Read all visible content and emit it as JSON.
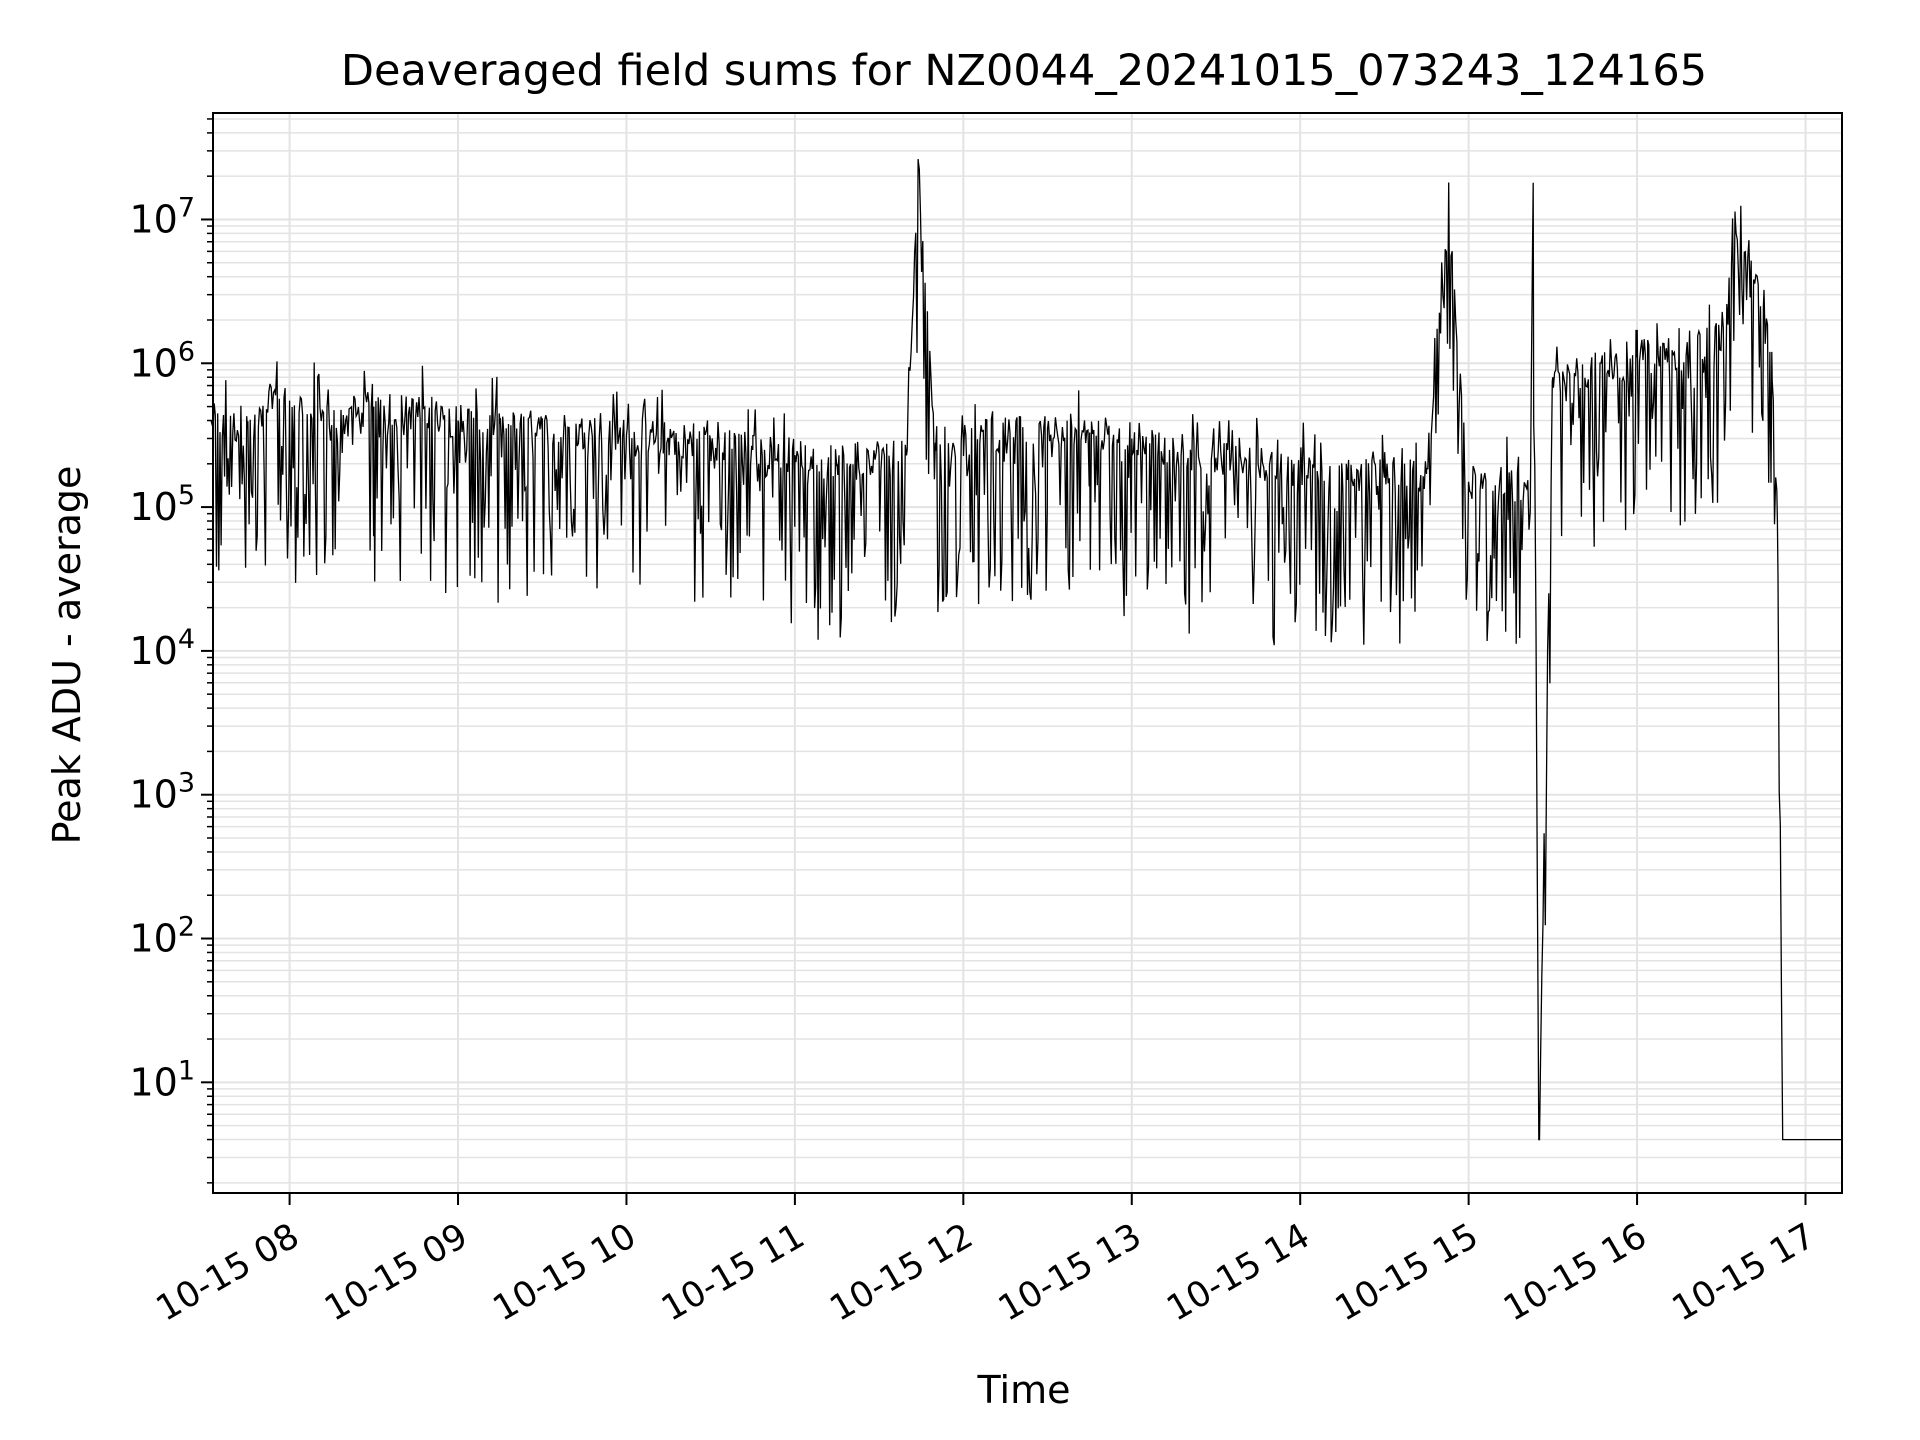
{
  "chart_data": {
    "type": "line",
    "title": "Deaveraged field sums for NZ0044_20241015_073243_124165",
    "xlabel": "Time",
    "ylabel": "Peak ADU - average",
    "yscale": "log",
    "ylim": [
      1.7,
      55000000
    ],
    "xlim": [
      "2024-10-15 07:32:43",
      "2024-10-15 17:13:00"
    ],
    "x_ticks": [
      {
        "value": "2024-10-15 08:00",
        "label": "10-15 08"
      },
      {
        "value": "2024-10-15 09:00",
        "label": "10-15 09"
      },
      {
        "value": "2024-10-15 10:00",
        "label": "10-15 10"
      },
      {
        "value": "2024-10-15 11:00",
        "label": "10-15 11"
      },
      {
        "value": "2024-10-15 12:00",
        "label": "10-15 12"
      },
      {
        "value": "2024-10-15 13:00",
        "label": "10-15 13"
      },
      {
        "value": "2024-10-15 14:00",
        "label": "10-15 14"
      },
      {
        "value": "2024-10-15 15:00",
        "label": "10-15 15"
      },
      {
        "value": "2024-10-15 16:00",
        "label": "10-15 16"
      },
      {
        "value": "2024-10-15 17:00",
        "label": "10-15 17"
      }
    ],
    "y_ticks": [
      {
        "value": 10,
        "base": "10",
        "exp": "1"
      },
      {
        "value": 100,
        "base": "10",
        "exp": "2"
      },
      {
        "value": 1000,
        "base": "10",
        "exp": "3"
      },
      {
        "value": 10000,
        "base": "10",
        "exp": "4"
      },
      {
        "value": 100000,
        "base": "10",
        "exp": "5"
      },
      {
        "value": 1000000,
        "base": "10",
        "exp": "6"
      },
      {
        "value": 10000000,
        "base": "10",
        "exp": "7"
      }
    ],
    "grid": true,
    "line_color": "#000000",
    "grid_color": "#e3e3e3",
    "series": [
      {
        "x": [
          "2024-10-15 07:32",
          "2024-10-15 07:45",
          "2024-10-15 07:55",
          "2024-10-15 08:00",
          "2024-10-15 08:10",
          "2024-10-15 08:20",
          "2024-10-15 08:30",
          "2024-10-15 08:45",
          "2024-10-15 09:00",
          "2024-10-15 09:15",
          "2024-10-15 09:30",
          "2024-10-15 09:45",
          "2024-10-15 10:00",
          "2024-10-15 10:15",
          "2024-10-15 10:30",
          "2024-10-15 10:45",
          "2024-10-15 11:00",
          "2024-10-15 11:15",
          "2024-10-15 11:30",
          "2024-10-15 11:40",
          "2024-10-15 11:44",
          "2024-10-15 11:50",
          "2024-10-15 12:00",
          "2024-10-15 12:15",
          "2024-10-15 12:30",
          "2024-10-15 12:45",
          "2024-10-15 13:00",
          "2024-10-15 13:15",
          "2024-10-15 13:30",
          "2024-10-15 13:45",
          "2024-10-15 14:00",
          "2024-10-15 14:15",
          "2024-10-15 14:30",
          "2024-10-15 14:45",
          "2024-10-15 14:53",
          "2024-10-15 15:00",
          "2024-10-15 15:15",
          "2024-10-15 15:22",
          "2024-10-15 15:23",
          "2024-10-15 15:25",
          "2024-10-15 15:30",
          "2024-10-15 15:45",
          "2024-10-15 16:00",
          "2024-10-15 16:15",
          "2024-10-15 16:30",
          "2024-10-15 16:35",
          "2024-10-15 16:45",
          "2024-10-15 16:48",
          "2024-10-15 16:50",
          "2024-10-15 16:52",
          "2024-10-15 16:55",
          "2024-10-15 17:00",
          "2024-10-15 17:10"
        ],
        "y": [
          400000,
          350000,
          600000,
          550000,
          450000,
          400000,
          500000,
          450000,
          400000,
          380000,
          350000,
          330000,
          320000,
          300000,
          280000,
          250000,
          230000,
          200000,
          230000,
          250000,
          25000000,
          280000,
          300000,
          320000,
          350000,
          330000,
          300000,
          250000,
          220000,
          200000,
          180000,
          170000,
          160000,
          170000,
          9500000,
          150000,
          140000,
          120000,
          18000000,
          4,
          800000,
          900000,
          1100000,
          1200000,
          1500000,
          10000000,
          2500000,
          1200000,
          80000,
          4,
          4,
          4,
          4
        ]
      }
    ]
  }
}
